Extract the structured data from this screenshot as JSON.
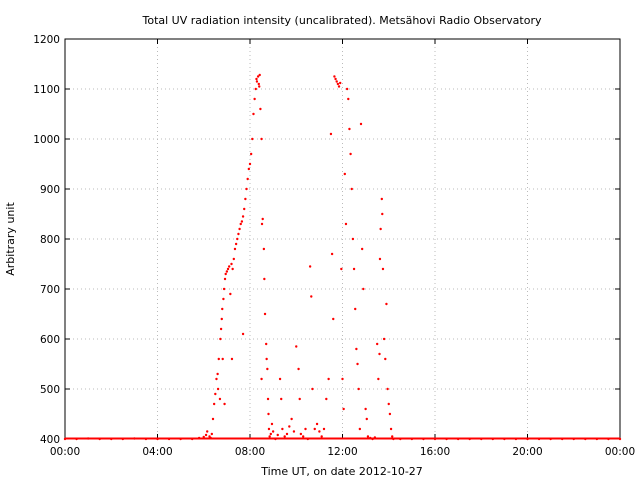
{
  "chart_data": {
    "type": "scatter",
    "title": "Total UV radiation intensity (uncalibrated). Metsähovi Radio Observatory",
    "xlabel": "Time UT, on date 2012-10-27",
    "ylabel": "Arbitrary unit",
    "xlim": [
      0,
      24
    ],
    "ylim": [
      400,
      1200
    ],
    "xticks": [
      {
        "value": 0,
        "label": "00:00"
      },
      {
        "value": 4,
        "label": "04:00"
      },
      {
        "value": 8,
        "label": "08:00"
      },
      {
        "value": 12,
        "label": "12:00"
      },
      {
        "value": 16,
        "label": "16:00"
      },
      {
        "value": 20,
        "label": "20:00"
      },
      {
        "value": 24,
        "label": "00:00"
      }
    ],
    "yticks": [
      {
        "value": 400,
        "label": "400"
      },
      {
        "value": 500,
        "label": "500"
      },
      {
        "value": 600,
        "label": "600"
      },
      {
        "value": 700,
        "label": "700"
      },
      {
        "value": 800,
        "label": "800"
      },
      {
        "value": 900,
        "label": "900"
      },
      {
        "value": 1000,
        "label": "1000"
      },
      {
        "value": 1100,
        "label": "1100"
      },
      {
        "value": 1200,
        "label": "1200"
      }
    ],
    "grid": true,
    "grid_style": "dotted",
    "point_color": "#ff0000",
    "series": [
      {
        "values": [
          [
            0.0,
            400
          ],
          [
            0.5,
            400
          ],
          [
            1.0,
            401
          ],
          [
            1.5,
            400
          ],
          [
            2.0,
            400
          ],
          [
            2.5,
            400
          ],
          [
            3.0,
            401
          ],
          [
            3.5,
            400
          ],
          [
            4.0,
            400
          ],
          [
            4.5,
            400
          ],
          [
            5.0,
            400
          ],
          [
            5.5,
            400
          ],
          [
            5.8,
            402
          ],
          [
            6.0,
            404
          ],
          [
            6.1,
            408
          ],
          [
            6.15,
            415
          ],
          [
            6.25,
            405
          ],
          [
            6.3,
            402
          ],
          [
            6.35,
            410
          ],
          [
            6.4,
            440
          ],
          [
            6.45,
            470
          ],
          [
            6.5,
            490
          ],
          [
            6.55,
            520
          ],
          [
            6.6,
            530
          ],
          [
            6.62,
            500
          ],
          [
            6.65,
            560
          ],
          [
            6.7,
            480
          ],
          [
            6.72,
            600
          ],
          [
            6.75,
            620
          ],
          [
            6.78,
            640
          ],
          [
            6.8,
            660
          ],
          [
            6.82,
            560
          ],
          [
            6.85,
            680
          ],
          [
            6.88,
            700
          ],
          [
            6.9,
            470
          ],
          [
            6.92,
            720
          ],
          [
            6.95,
            730
          ],
          [
            7.0,
            735
          ],
          [
            7.05,
            740
          ],
          [
            7.1,
            745
          ],
          [
            7.15,
            690
          ],
          [
            7.2,
            750
          ],
          [
            7.22,
            560
          ],
          [
            7.25,
            740
          ],
          [
            7.3,
            760
          ],
          [
            7.35,
            780
          ],
          [
            7.4,
            790
          ],
          [
            7.45,
            800
          ],
          [
            7.5,
            810
          ],
          [
            7.55,
            820
          ],
          [
            7.6,
            830
          ],
          [
            7.65,
            835
          ],
          [
            7.7,
            610
          ],
          [
            7.7,
            845
          ],
          [
            7.75,
            860
          ],
          [
            7.8,
            880
          ],
          [
            7.85,
            900
          ],
          [
            7.9,
            920
          ],
          [
            7.95,
            940
          ],
          [
            8.0,
            950
          ],
          [
            8.05,
            970
          ],
          [
            8.1,
            1000
          ],
          [
            8.15,
            1050
          ],
          [
            8.2,
            1080
          ],
          [
            8.25,
            1100
          ],
          [
            8.28,
            1120
          ],
          [
            8.3,
            1115
          ],
          [
            8.35,
            1125
          ],
          [
            8.38,
            1110
          ],
          [
            8.4,
            1105
          ],
          [
            8.42,
            1128
          ],
          [
            8.45,
            1060
          ],
          [
            8.5,
            1000
          ],
          [
            8.5,
            520
          ],
          [
            8.52,
            830
          ],
          [
            8.55,
            840
          ],
          [
            8.6,
            780
          ],
          [
            8.62,
            720
          ],
          [
            8.65,
            650
          ],
          [
            8.7,
            590
          ],
          [
            8.72,
            560
          ],
          [
            8.75,
            540
          ],
          [
            8.78,
            480
          ],
          [
            8.8,
            450
          ],
          [
            8.82,
            420
          ],
          [
            8.85,
            405
          ],
          [
            8.9,
            410
          ],
          [
            8.95,
            430
          ],
          [
            9.0,
            415
          ],
          [
            9.1,
            400
          ],
          [
            9.2,
            408
          ],
          [
            9.3,
            520
          ],
          [
            9.35,
            480
          ],
          [
            9.4,
            420
          ],
          [
            9.5,
            405
          ],
          [
            9.6,
            410
          ],
          [
            9.7,
            425
          ],
          [
            9.8,
            440
          ],
          [
            9.9,
            415
          ],
          [
            10.0,
            585
          ],
          [
            10.1,
            540
          ],
          [
            10.15,
            480
          ],
          [
            10.2,
            410
          ],
          [
            10.3,
            405
          ],
          [
            10.4,
            420
          ],
          [
            10.5,
            400
          ],
          [
            10.6,
            745
          ],
          [
            10.65,
            685
          ],
          [
            10.7,
            500
          ],
          [
            10.8,
            420
          ],
          [
            10.9,
            430
          ],
          [
            11.0,
            415
          ],
          [
            11.1,
            405
          ],
          [
            11.2,
            420
          ],
          [
            11.3,
            480
          ],
          [
            11.4,
            520
          ],
          [
            11.5,
            1010
          ],
          [
            11.55,
            770
          ],
          [
            11.6,
            640
          ],
          [
            11.65,
            1125
          ],
          [
            11.7,
            1120
          ],
          [
            11.75,
            1115
          ],
          [
            11.8,
            1110
          ],
          [
            11.85,
            1105
          ],
          [
            11.9,
            1112
          ],
          [
            11.95,
            740
          ],
          [
            12.0,
            520
          ],
          [
            12.05,
            460
          ],
          [
            12.1,
            930
          ],
          [
            12.15,
            830
          ],
          [
            12.2,
            1100
          ],
          [
            12.25,
            1080
          ],
          [
            12.3,
            1020
          ],
          [
            12.35,
            970
          ],
          [
            12.4,
            900
          ],
          [
            12.45,
            800
          ],
          [
            12.5,
            740
          ],
          [
            12.55,
            660
          ],
          [
            12.6,
            580
          ],
          [
            12.65,
            550
          ],
          [
            12.7,
            500
          ],
          [
            12.75,
            420
          ],
          [
            12.8,
            1030
          ],
          [
            12.85,
            780
          ],
          [
            12.9,
            700
          ],
          [
            13.0,
            460
          ],
          [
            13.05,
            440
          ],
          [
            13.1,
            405
          ],
          [
            13.2,
            402
          ],
          [
            13.3,
            400
          ],
          [
            13.4,
            403
          ],
          [
            13.5,
            590
          ],
          [
            13.55,
            520
          ],
          [
            13.6,
            570
          ],
          [
            13.62,
            760
          ],
          [
            13.65,
            820
          ],
          [
            13.7,
            880
          ],
          [
            13.72,
            850
          ],
          [
            13.75,
            740
          ],
          [
            13.8,
            600
          ],
          [
            13.85,
            560
          ],
          [
            13.9,
            670
          ],
          [
            13.95,
            500
          ],
          [
            14.0,
            470
          ],
          [
            14.05,
            450
          ],
          [
            14.1,
            420
          ],
          [
            14.15,
            405
          ],
          [
            14.2,
            400
          ],
          [
            14.5,
            400
          ],
          [
            15.0,
            400
          ],
          [
            15.5,
            400
          ],
          [
            16.0,
            400
          ],
          [
            16.5,
            400
          ],
          [
            17.0,
            400
          ],
          [
            17.5,
            400
          ],
          [
            18.0,
            400
          ],
          [
            18.5,
            400
          ],
          [
            19.0,
            400
          ],
          [
            19.5,
            400
          ],
          [
            20.0,
            400
          ],
          [
            20.5,
            400
          ],
          [
            21.0,
            400
          ],
          [
            21.5,
            400
          ],
          [
            22.0,
            400
          ],
          [
            22.5,
            400
          ],
          [
            23.0,
            400
          ],
          [
            23.5,
            400
          ],
          [
            24.0,
            400
          ]
        ]
      }
    ]
  }
}
